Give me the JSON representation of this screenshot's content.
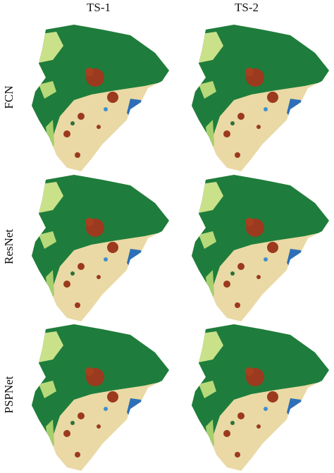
{
  "columns": [
    "TS-1",
    "TS-2"
  ],
  "rows": [
    "FCN",
    "ResNet",
    "PSPNet"
  ]
}
